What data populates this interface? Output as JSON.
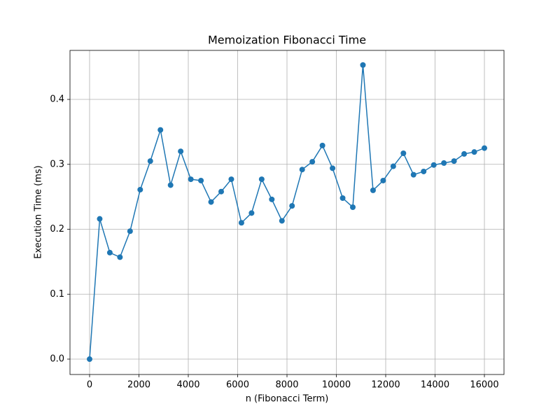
{
  "chart_data": {
    "type": "line",
    "title": "Memoization Fibonacci Time",
    "xlabel": "n (Fibonacci Term)",
    "ylabel": "Execution Time (ms)",
    "x": [
      0,
      410.3,
      820.5,
      1230.8,
      1641.0,
      2051.3,
      2461.5,
      2871.8,
      3282.1,
      3692.3,
      4102.6,
      4512.8,
      4923.1,
      5333.3,
      5743.6,
      6153.8,
      6564.1,
      6974.4,
      7384.6,
      7794.9,
      8205.1,
      8615.4,
      9025.6,
      9435.9,
      9846.2,
      10256.4,
      10666.7,
      11076.9,
      11487.2,
      11897.4,
      12307.7,
      12717.9,
      13128.2,
      13538.5,
      13948.7,
      14359.0,
      14769.2,
      15179.5,
      15589.7,
      16000
    ],
    "series": [
      {
        "color": "#1f77b4",
        "values": [
          0.0,
          0.216,
          0.164,
          0.157,
          0.197,
          0.261,
          0.305,
          0.353,
          0.268,
          0.32,
          0.277,
          0.275,
          0.242,
          0.258,
          0.277,
          0.21,
          0.225,
          0.277,
          0.246,
          0.213,
          0.236,
          0.292,
          0.304,
          0.329,
          0.294,
          0.248,
          0.234,
          0.453,
          0.26,
          0.275,
          0.297,
          0.317,
          0.284,
          0.289,
          0.299,
          0.302,
          0.305,
          0.316,
          0.319,
          0.325
        ]
      }
    ],
    "xlim": [
      -794,
      16794
    ],
    "ylim": [
      -0.0237,
      0.4755
    ],
    "xticks": [
      0,
      2000,
      4000,
      6000,
      8000,
      10000,
      12000,
      14000,
      16000
    ],
    "yticks": [
      {
        "value": 0,
        "label": "0.0"
      },
      0.1,
      0.2,
      0.3,
      0.4
    ],
    "grid": true
  }
}
